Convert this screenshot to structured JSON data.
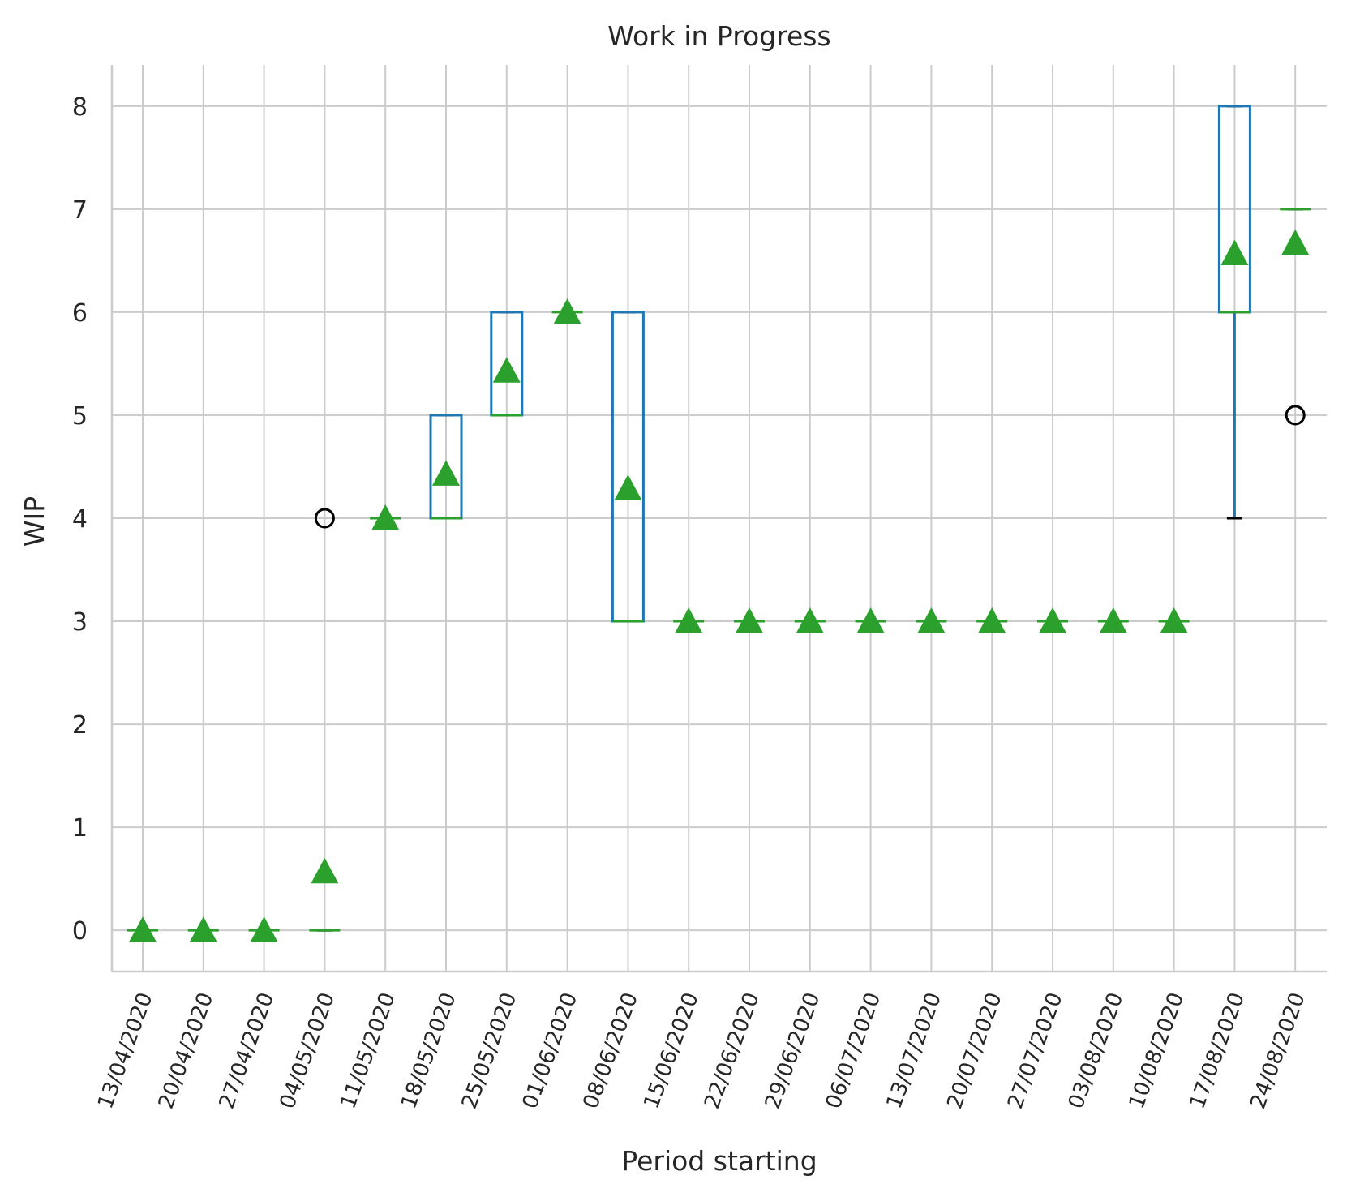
{
  "chart_data": {
    "type": "box",
    "title": "Work in Progress",
    "xlabel": "Period starting",
    "ylabel": "WIP",
    "ylim": [
      -0.4,
      8.4
    ],
    "yticks": [
      0,
      1,
      2,
      3,
      4,
      5,
      6,
      7,
      8
    ],
    "grid": true,
    "colors": {
      "box": "#1f77b4",
      "median": "#2ca02c",
      "mean_marker": "#2ca02c",
      "whisker_cap": "#000000",
      "flier": "#000000",
      "grid": "#cccccc",
      "spine": "#cccccc"
    },
    "categories": [
      "13/04/2020",
      "20/04/2020",
      "27/04/2020",
      "04/05/2020",
      "11/05/2020",
      "18/05/2020",
      "25/05/2020",
      "01/06/2020",
      "08/06/2020",
      "15/06/2020",
      "22/06/2020",
      "29/06/2020",
      "06/07/2020",
      "13/07/2020",
      "20/07/2020",
      "27/07/2020",
      "03/08/2020",
      "10/08/2020",
      "17/08/2020",
      "24/08/2020"
    ],
    "boxes": [
      {
        "q1": 0,
        "median": 0,
        "q3": 0,
        "whislo": 0,
        "whishi": 0,
        "mean": 0,
        "fliers": []
      },
      {
        "q1": 0,
        "median": 0,
        "q3": 0,
        "whislo": 0,
        "whishi": 0,
        "mean": 0,
        "fliers": []
      },
      {
        "q1": 0,
        "median": 0,
        "q3": 0,
        "whislo": 0,
        "whishi": 0,
        "mean": 0,
        "fliers": []
      },
      {
        "q1": 0,
        "median": 0,
        "q3": 0,
        "whislo": 0,
        "whishi": 0,
        "mean": 0.57,
        "fliers": [
          4
        ]
      },
      {
        "q1": 4,
        "median": 4,
        "q3": 4,
        "whislo": 4,
        "whishi": 4,
        "mean": 4,
        "fliers": []
      },
      {
        "q1": 4,
        "median": 4,
        "q3": 5,
        "whislo": 4,
        "whishi": 5,
        "mean": 4.43,
        "fliers": []
      },
      {
        "q1": 5,
        "median": 5,
        "q3": 6,
        "whislo": 5,
        "whishi": 6,
        "mean": 5.43,
        "fliers": []
      },
      {
        "q1": 6,
        "median": 6,
        "q3": 6,
        "whislo": 6,
        "whishi": 6,
        "mean": 6,
        "fliers": []
      },
      {
        "q1": 3,
        "median": 3,
        "q3": 6,
        "whislo": 3,
        "whishi": 6,
        "mean": 4.29,
        "fliers": []
      },
      {
        "q1": 3,
        "median": 3,
        "q3": 3,
        "whislo": 3,
        "whishi": 3,
        "mean": 3,
        "fliers": []
      },
      {
        "q1": 3,
        "median": 3,
        "q3": 3,
        "whislo": 3,
        "whishi": 3,
        "mean": 3,
        "fliers": []
      },
      {
        "q1": 3,
        "median": 3,
        "q3": 3,
        "whislo": 3,
        "whishi": 3,
        "mean": 3,
        "fliers": []
      },
      {
        "q1": 3,
        "median": 3,
        "q3": 3,
        "whislo": 3,
        "whishi": 3,
        "mean": 3,
        "fliers": []
      },
      {
        "q1": 3,
        "median": 3,
        "q3": 3,
        "whislo": 3,
        "whishi": 3,
        "mean": 3,
        "fliers": []
      },
      {
        "q1": 3,
        "median": 3,
        "q3": 3,
        "whislo": 3,
        "whishi": 3,
        "mean": 3,
        "fliers": []
      },
      {
        "q1": 3,
        "median": 3,
        "q3": 3,
        "whislo": 3,
        "whishi": 3,
        "mean": 3,
        "fliers": []
      },
      {
        "q1": 3,
        "median": 3,
        "q3": 3,
        "whislo": 3,
        "whishi": 3,
        "mean": 3,
        "fliers": []
      },
      {
        "q1": 3,
        "median": 3,
        "q3": 3,
        "whislo": 3,
        "whishi": 3,
        "mean": 3,
        "fliers": []
      },
      {
        "q1": 6,
        "median": 6,
        "q3": 8,
        "whislo": 4,
        "whishi": 8,
        "mean": 6.57,
        "fliers": []
      },
      {
        "q1": 7,
        "median": 7,
        "q3": 7,
        "whislo": 7,
        "whishi": 7,
        "mean": 6.67,
        "fliers": [
          5
        ]
      }
    ]
  }
}
